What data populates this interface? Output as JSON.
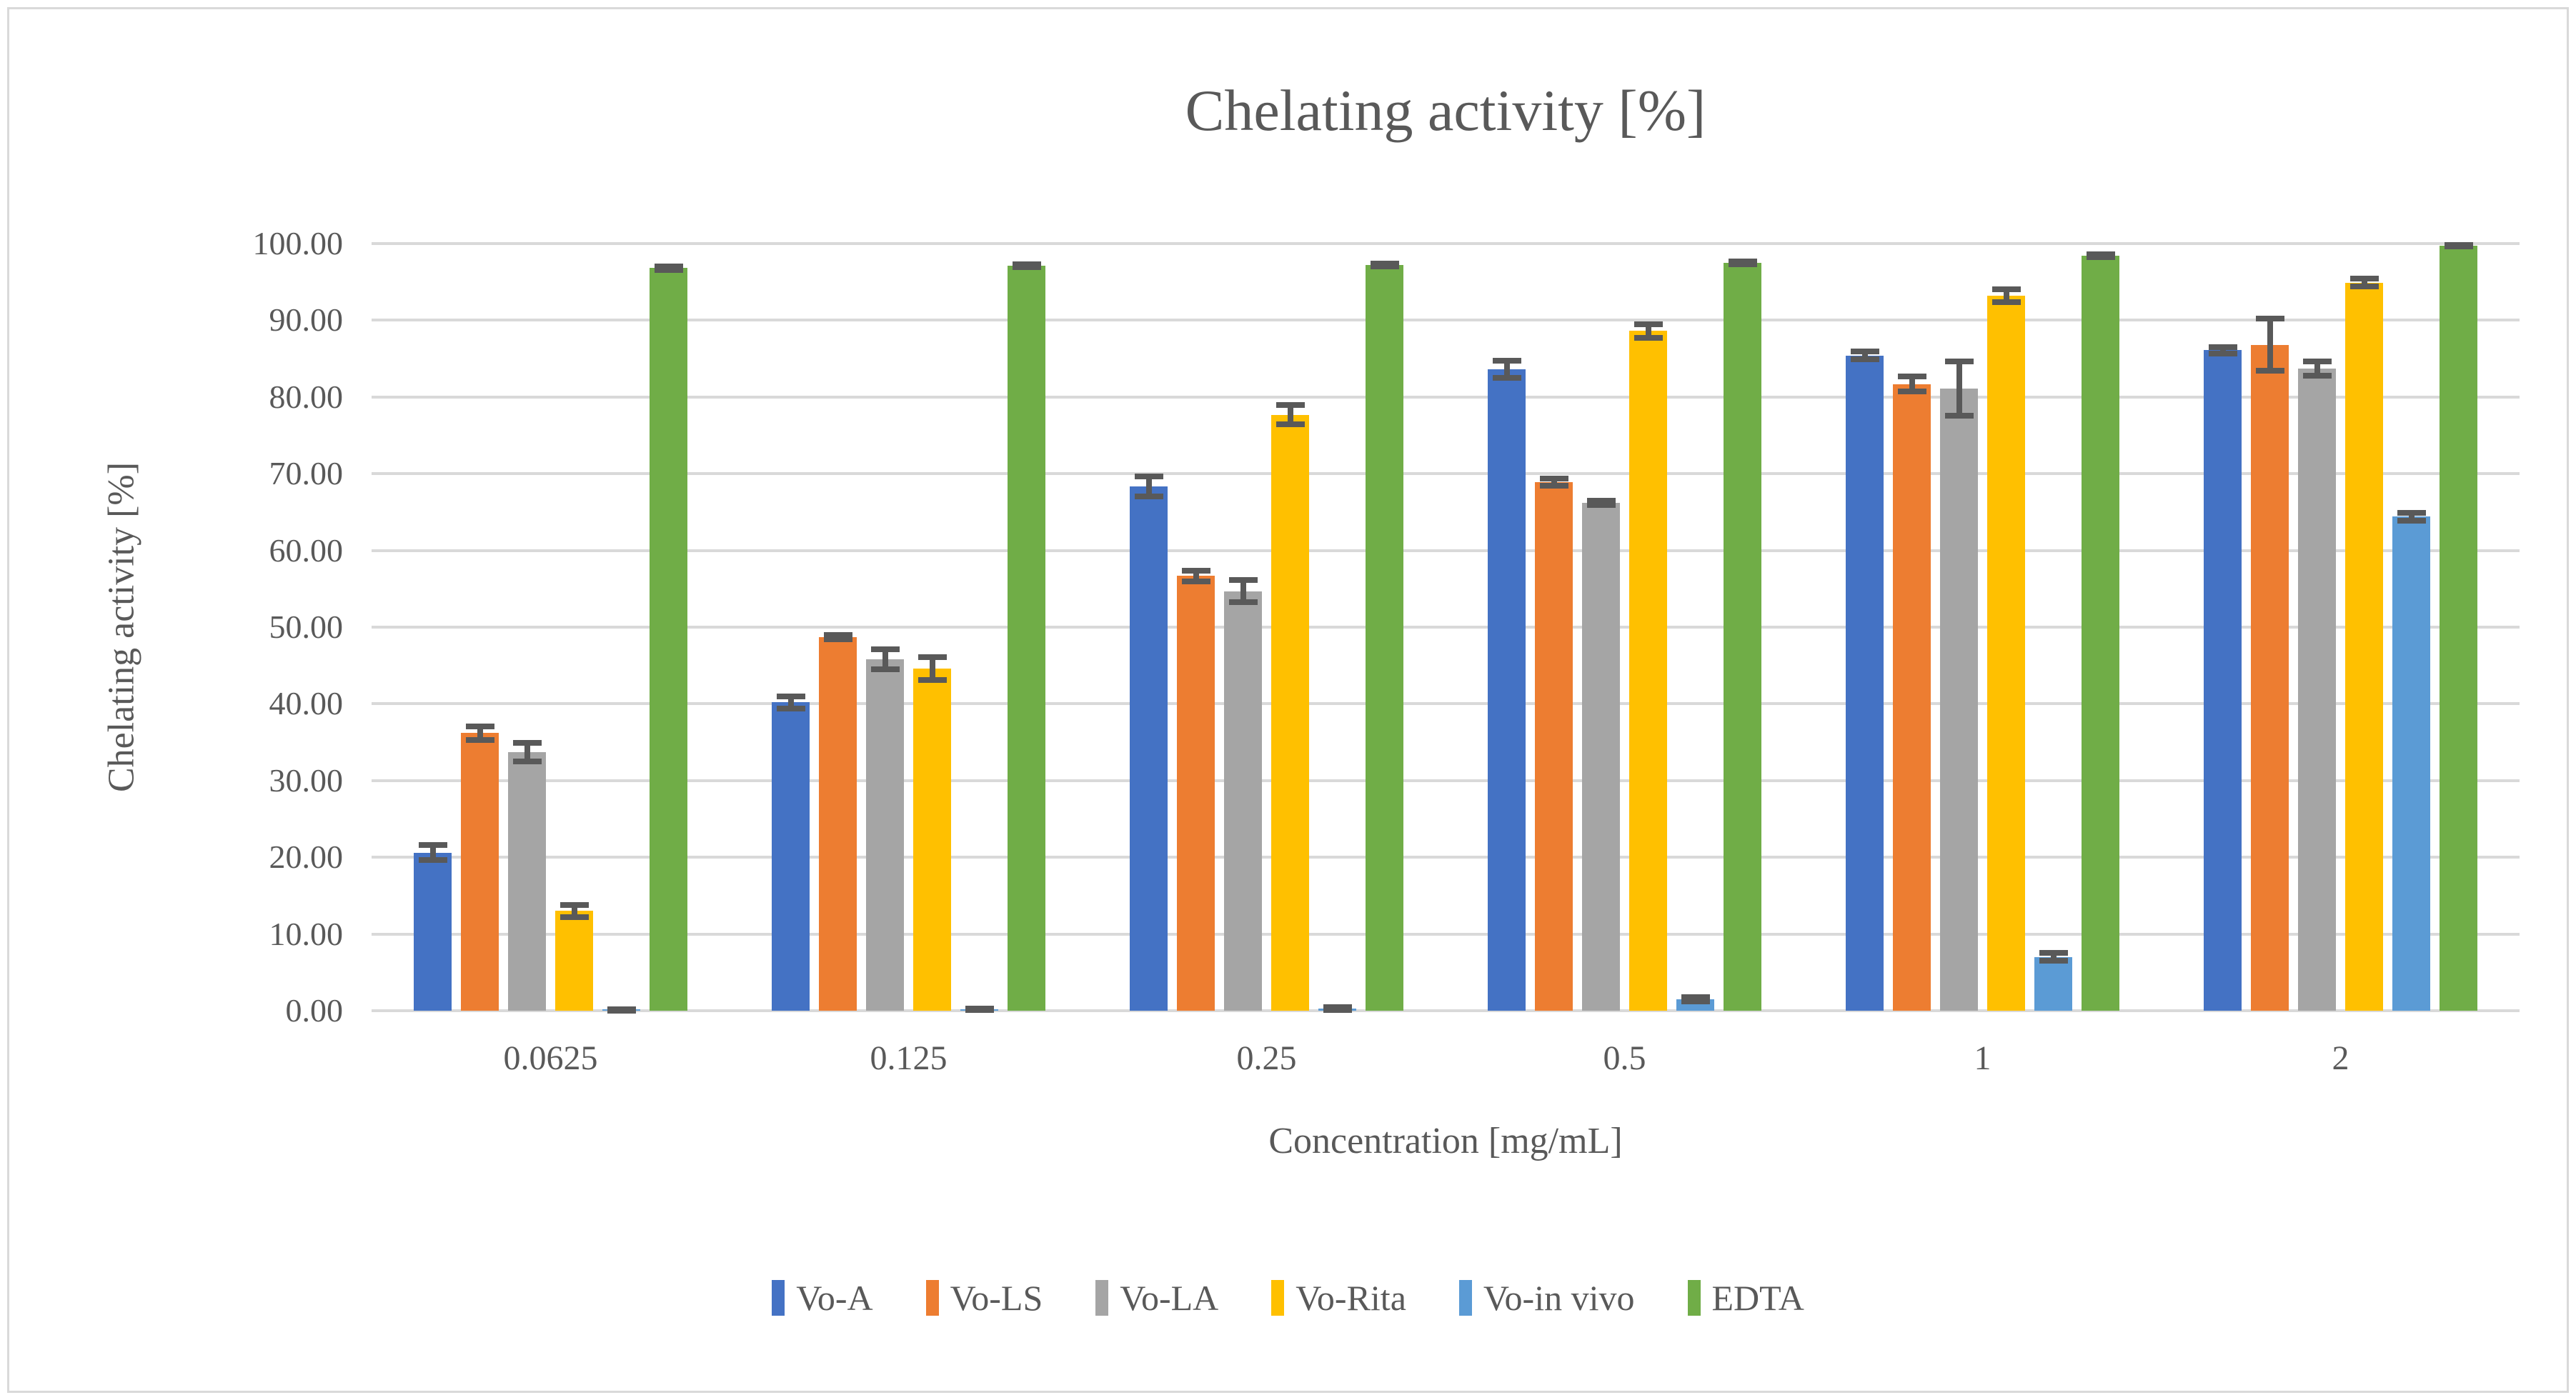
{
  "chart_data": {
    "type": "bar",
    "title": "Chelating activity [%]",
    "xlabel": "Concentration [mg/mL]",
    "ylabel": "Chelating activity [%]",
    "ylim": [
      0,
      100
    ],
    "ytick_step": 10,
    "ytick_decimals": 2,
    "grid": true,
    "legend_position": "bottom",
    "error_bars": true,
    "categories": [
      "0.0625",
      "0.125",
      "0.25",
      "0.5",
      "1",
      "2"
    ],
    "series": [
      {
        "name": "Vo-A",
        "color": "#4472C4",
        "values": [
          20.6,
          40.2,
          68.3,
          83.6,
          85.4,
          86.1
        ],
        "errors": [
          1.0,
          0.8,
          1.3,
          1.1,
          0.5,
          0.4
        ]
      },
      {
        "name": "Vo-LS",
        "color": "#ED7D31",
        "values": [
          36.2,
          48.7,
          56.7,
          68.9,
          81.7,
          86.8
        ],
        "errors": [
          0.9,
          0.3,
          0.7,
          0.5,
          1.0,
          3.4
        ]
      },
      {
        "name": "Vo-LA",
        "color": "#A5A5A5",
        "values": [
          33.7,
          45.8,
          54.7,
          66.2,
          81.1,
          83.7
        ],
        "errors": [
          1.2,
          1.3,
          1.4,
          0.3,
          3.5,
          0.9
        ]
      },
      {
        "name": "Vo-Rita",
        "color": "#FFC000",
        "values": [
          13.0,
          44.6,
          77.7,
          88.6,
          93.2,
          94.9
        ],
        "errors": [
          0.8,
          1.5,
          1.3,
          0.9,
          0.8,
          0.5
        ]
      },
      {
        "name": "Vo-in vivo",
        "color": "#5B9BD5",
        "values": [
          0.1,
          0.2,
          0.3,
          1.5,
          7.0,
          64.4
        ],
        "errors": [
          0.1,
          0.1,
          0.2,
          0.3,
          0.5,
          0.5
        ]
      },
      {
        "name": "EDTA",
        "color": "#70AD47",
        "values": [
          96.8,
          97.1,
          97.2,
          97.5,
          98.4,
          99.7
        ],
        "errors": [
          0.2,
          0.2,
          0.2,
          0.2,
          0.2,
          0.1
        ]
      }
    ]
  },
  "styles": {
    "text_color": "#595959",
    "gridline_color": "#D9D9D9",
    "error_bar_color": "#595959",
    "frame_color": "#D9D9D9",
    "background": "#FFFFFF"
  }
}
